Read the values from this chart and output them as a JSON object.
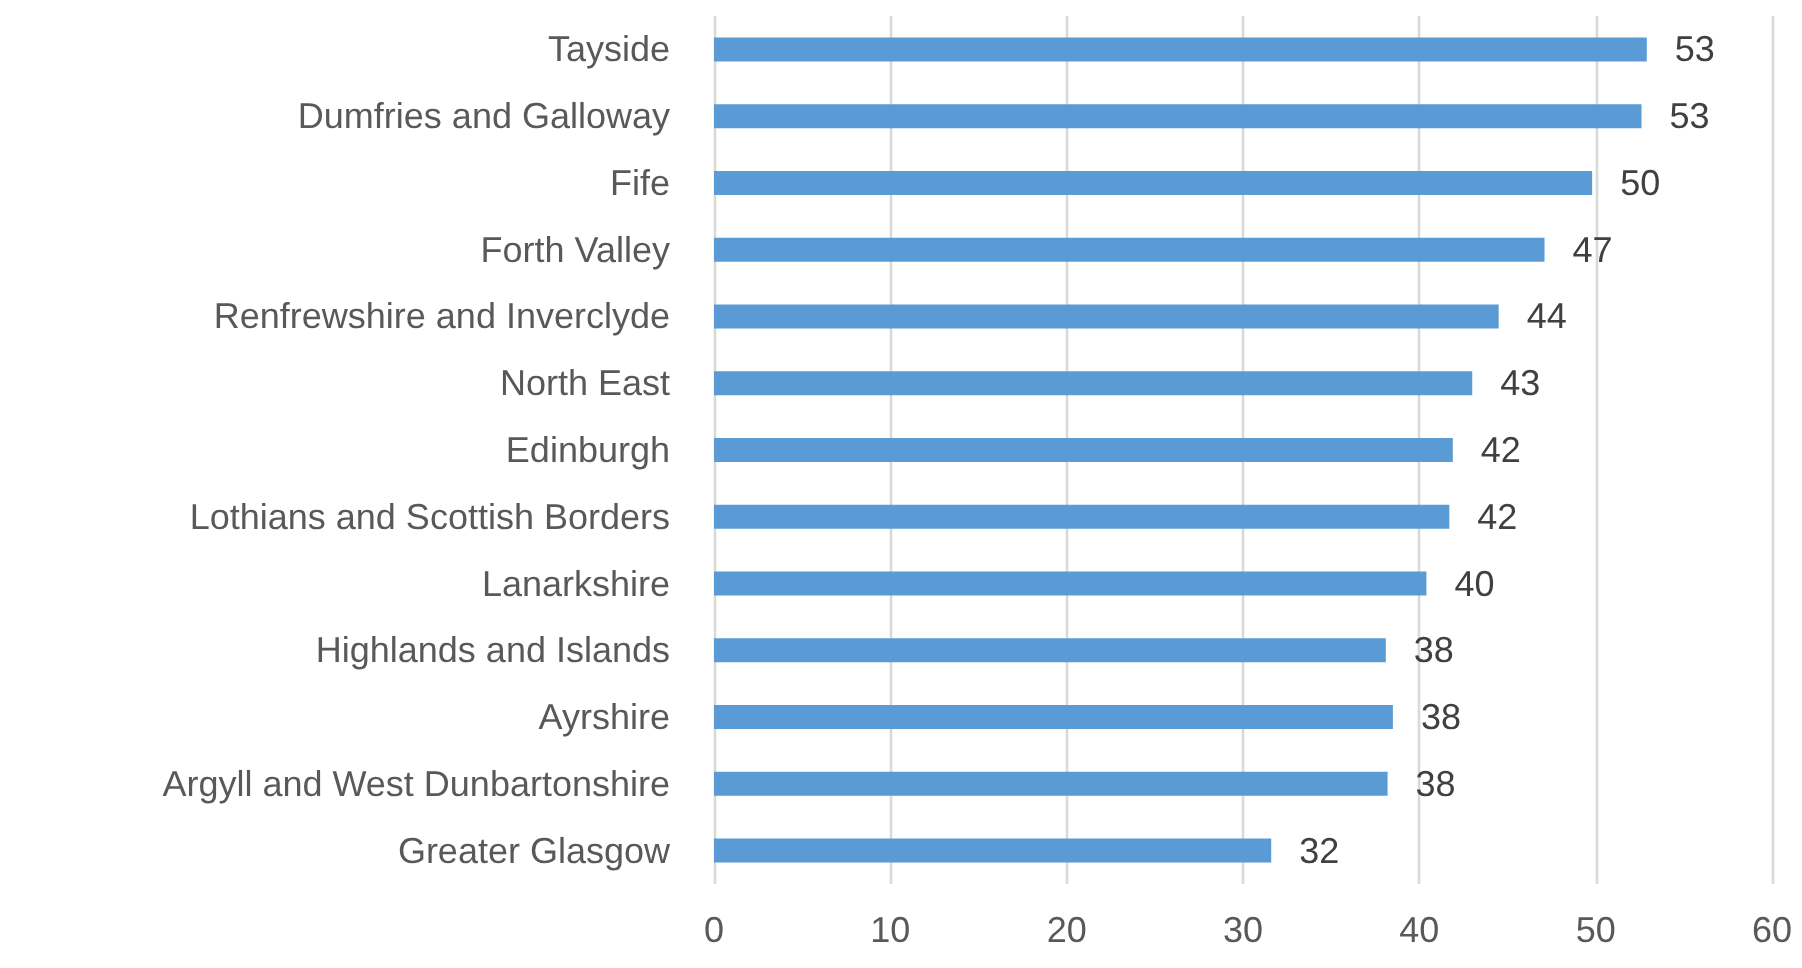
{
  "chart_data": {
    "type": "bar",
    "orientation": "horizontal",
    "categories": [
      "Tayside",
      "Dumfries and Galloway",
      "Fife",
      "Forth Valley",
      "Renfrewshire and Inverclyde",
      "North East",
      "Edinburgh",
      "Lothians and Scottish Borders",
      "Lanarkshire",
      "Highlands and Islands",
      "Ayrshire",
      "Argyll and West Dunbartonshire",
      "Greater Glasgow"
    ],
    "values": [
      52.9,
      52.6,
      49.8,
      47.1,
      44.5,
      43.0,
      41.9,
      41.7,
      40.4,
      38.1,
      38.5,
      38.2,
      31.6
    ],
    "value_labels": [
      "53",
      "53",
      "50",
      "47",
      "44",
      "43",
      "42",
      "42",
      "40",
      "38",
      "38",
      "38",
      "32"
    ],
    "color": "#5b9bd5",
    "xlim": [
      0,
      60
    ],
    "xticks": [
      0,
      10,
      20,
      30,
      40,
      50,
      60
    ],
    "grid": "x"
  }
}
